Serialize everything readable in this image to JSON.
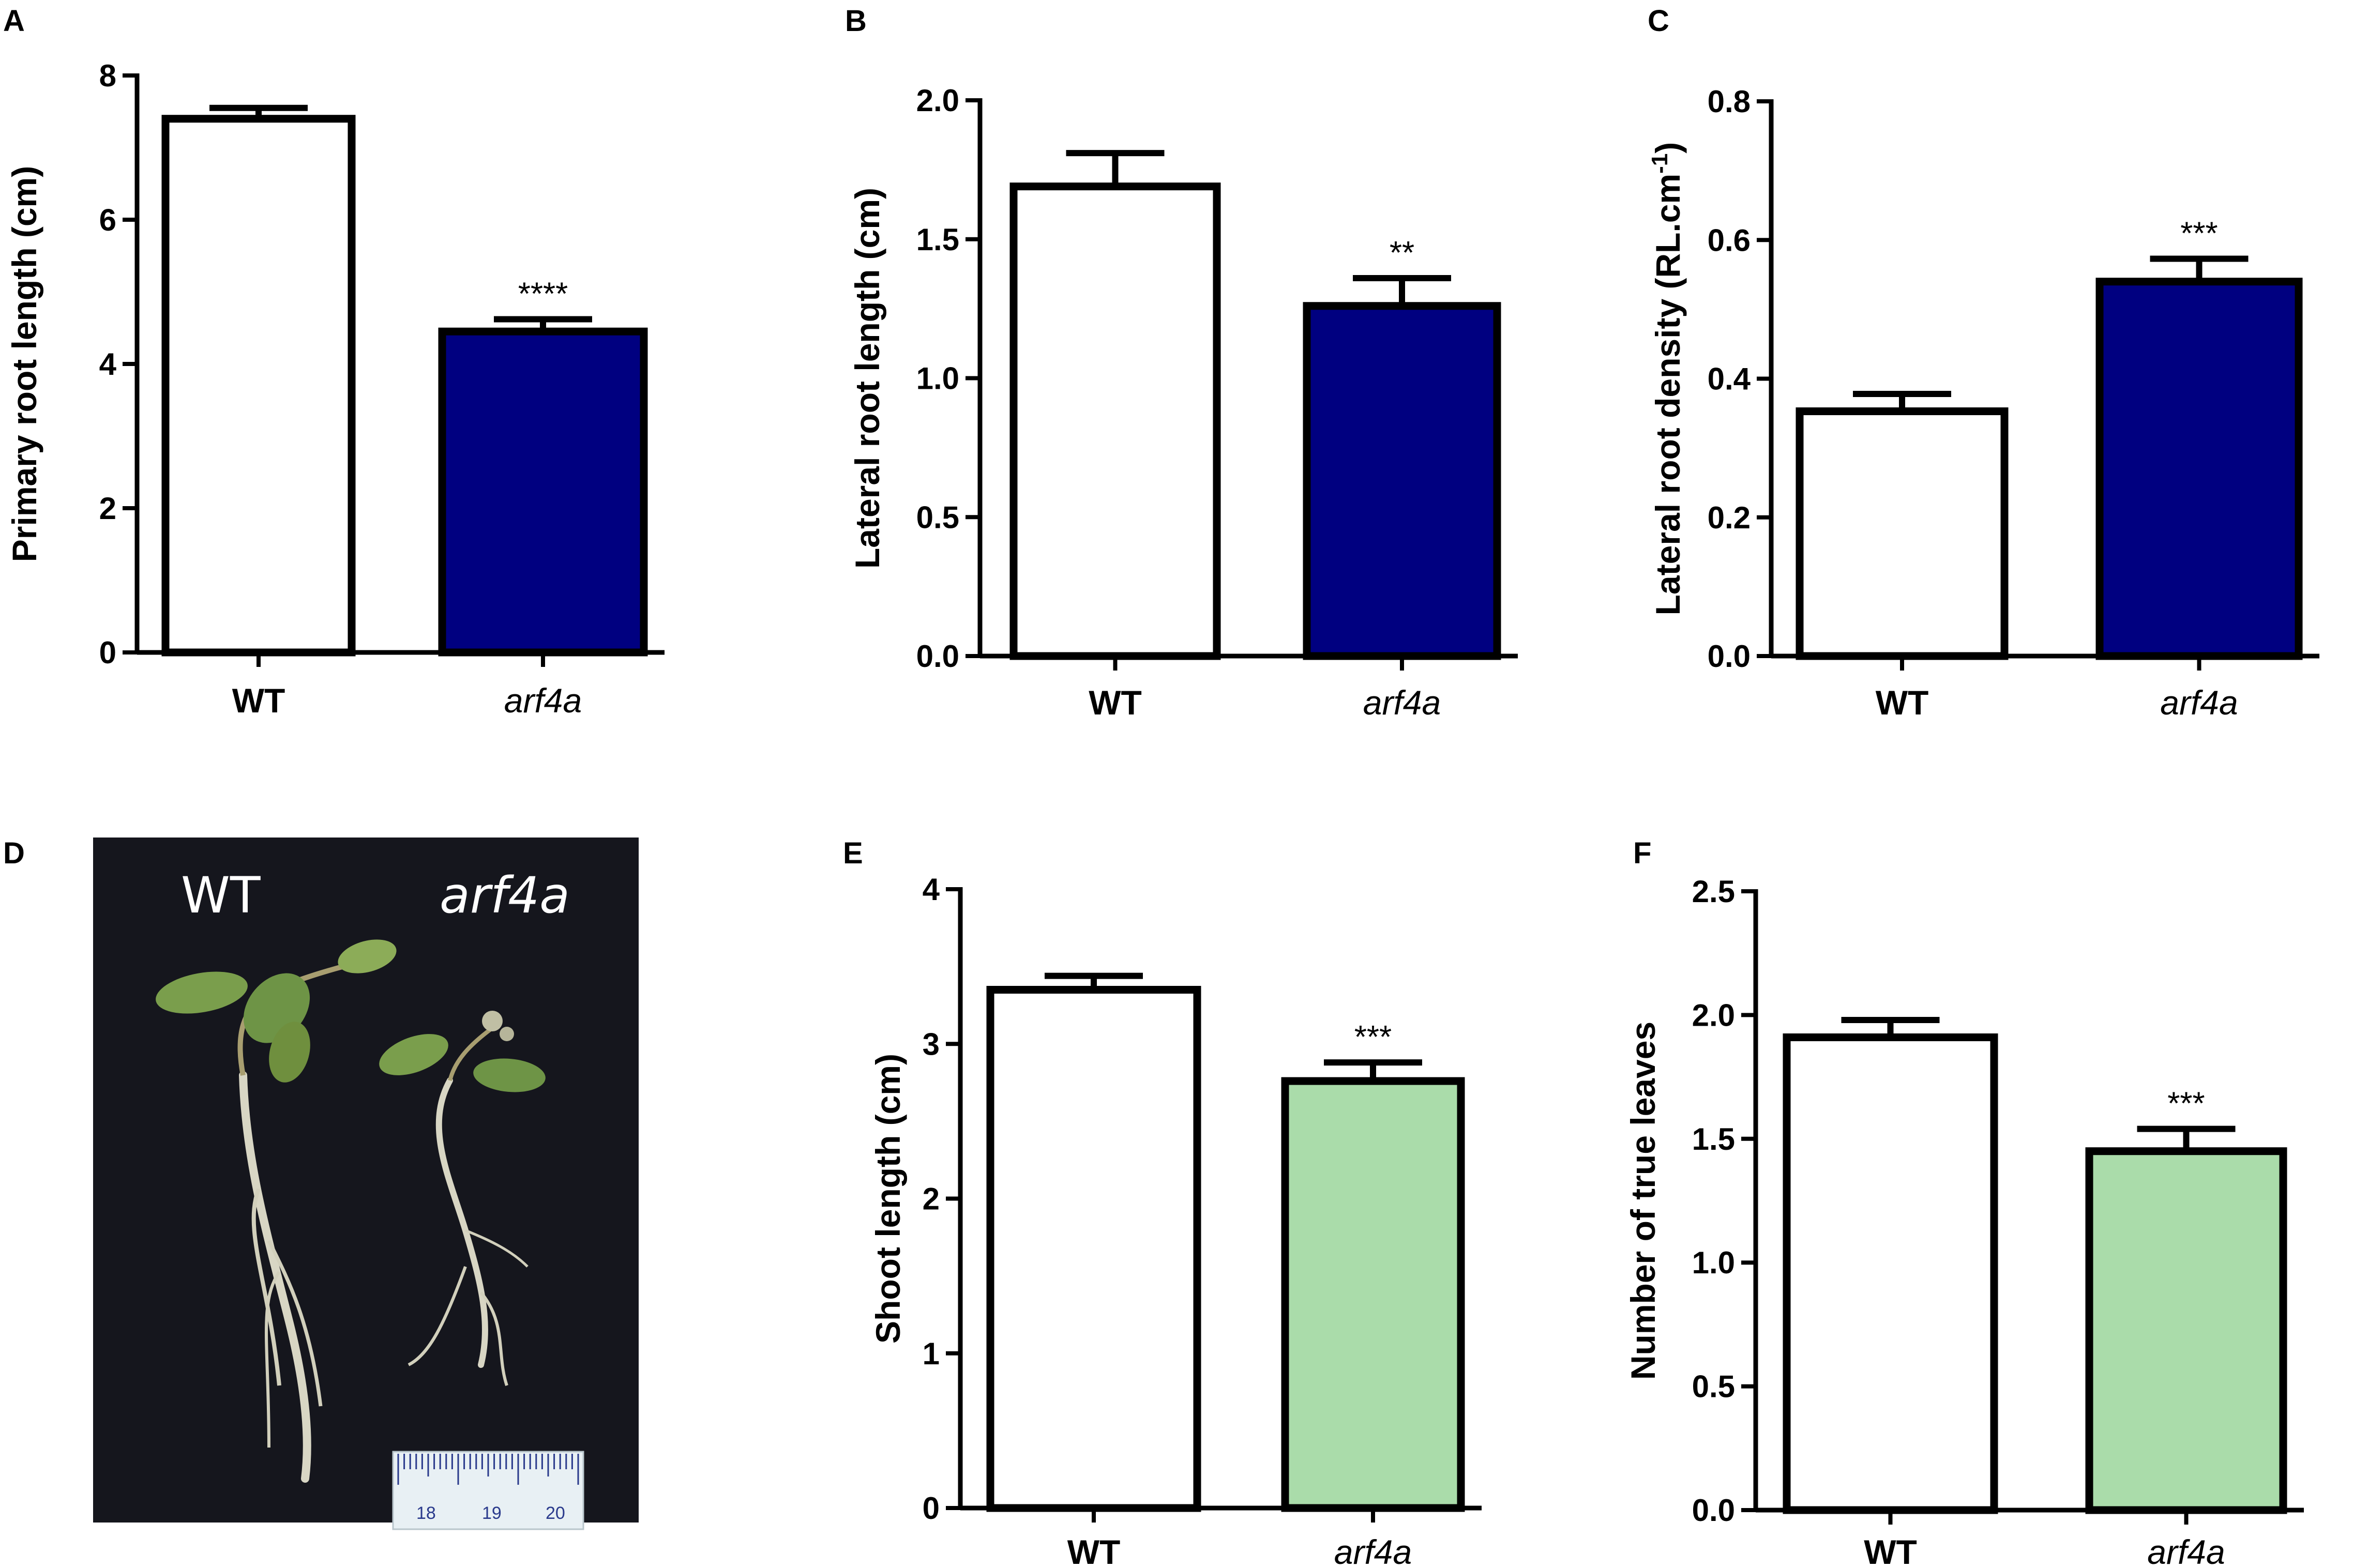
{
  "chart_data": [
    {
      "panel": "A",
      "type": "bar",
      "categories": [
        "WT",
        "arf4a"
      ],
      "values": [
        7.4,
        4.45
      ],
      "errors": [
        0.15,
        0.17
      ],
      "significance": [
        "",
        "****"
      ],
      "ylabel": "Primary root length (cm)",
      "ylim": [
        0,
        8
      ],
      "yticks": [
        0,
        2,
        4,
        6,
        8
      ],
      "colors": [
        "#ffffff",
        "#000080"
      ]
    },
    {
      "panel": "B",
      "type": "bar",
      "categories": [
        "WT",
        "arf4a"
      ],
      "values": [
        1.69,
        1.26
      ],
      "errors": [
        0.12,
        0.1
      ],
      "significance": [
        "",
        "**"
      ],
      "ylabel": "Lateral root length (cm)",
      "ylim": [
        0,
        2.0
      ],
      "yticks": [
        "0.0",
        "0.5",
        "1.0",
        "1.5",
        "2.0"
      ],
      "colors": [
        "#ffffff",
        "#000080"
      ]
    },
    {
      "panel": "C",
      "type": "bar",
      "categories": [
        "WT",
        "arf4a"
      ],
      "values": [
        0.353,
        0.54
      ],
      "errors": [
        0.025,
        0.033
      ],
      "significance": [
        "",
        "***"
      ],
      "ylabel": "Lateral root density (RL.cm",
      "ylabel_sup": "-1",
      "ylabel_end": ")",
      "ylim": [
        0,
        0.8
      ],
      "yticks": [
        "0.0",
        "0.2",
        "0.4",
        "0.6",
        "0.8"
      ],
      "colors": [
        "#ffffff",
        "#000080"
      ]
    },
    {
      "panel": "E",
      "type": "bar",
      "categories": [
        "WT",
        "arf4a"
      ],
      "values": [
        3.35,
        2.76
      ],
      "errors": [
        0.09,
        0.12
      ],
      "significance": [
        "",
        "***"
      ],
      "ylabel": "Shoot length (cm)",
      "ylim": [
        0,
        4
      ],
      "yticks": [
        0,
        1,
        2,
        3,
        4
      ],
      "colors": [
        "#ffffff",
        "#aadcaa"
      ]
    },
    {
      "panel": "F",
      "type": "bar",
      "categories": [
        "WT",
        "arf4a"
      ],
      "values": [
        1.91,
        1.45
      ],
      "errors": [
        0.07,
        0.09
      ],
      "significance": [
        "",
        "***"
      ],
      "ylabel": "Number of true leaves",
      "ylim": [
        0,
        2.5
      ],
      "yticks": [
        "0.0",
        "0.5",
        "1.0",
        "1.5",
        "2.0",
        "2.5"
      ],
      "colors": [
        "#ffffff",
        "#aadcaa"
      ]
    }
  ],
  "photo": {
    "panel": "D",
    "label_left": "WT",
    "label_right": "arf4a",
    "ruler_numbers": [
      "18",
      "19",
      "20"
    ]
  }
}
